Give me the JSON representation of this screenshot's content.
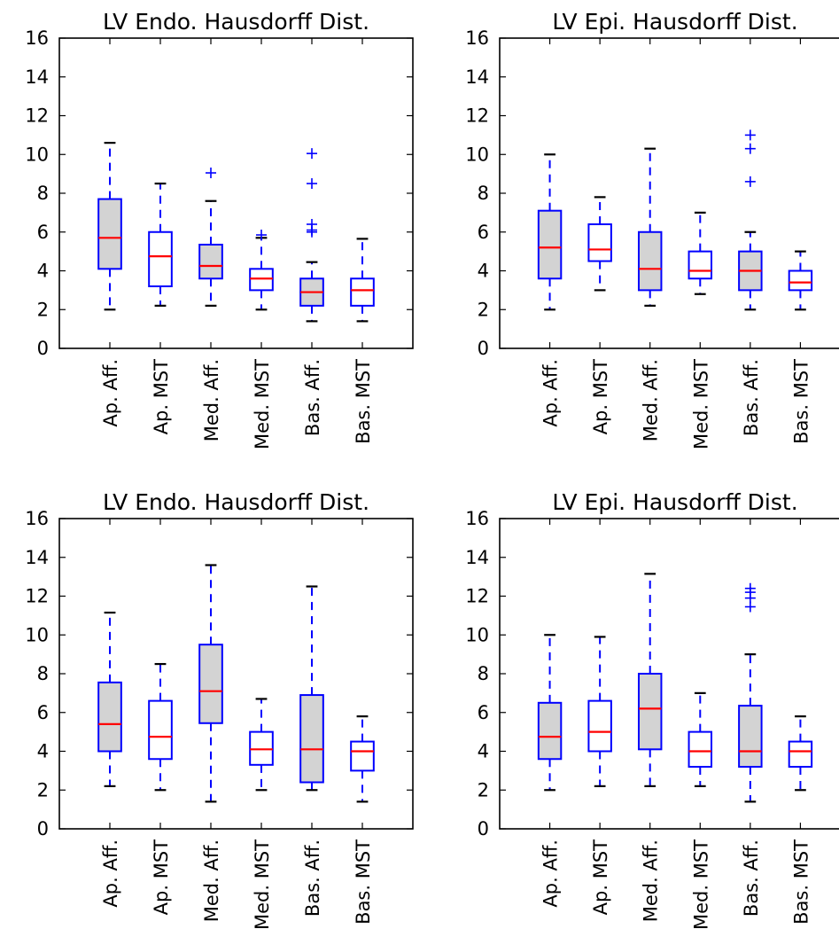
{
  "chart_data": [
    {
      "type": "box",
      "title": "LV Endo. Hausdorff Dist.",
      "categories": [
        "Ap. Aff.",
        "Ap. MST",
        "Med. Aff.",
        "Med. MST",
        "Bas. Aff.",
        "Bas. MST"
      ],
      "ylim": [
        0,
        16
      ],
      "yticks": [
        0,
        2,
        4,
        6,
        8,
        10,
        12,
        14,
        16
      ],
      "grid": false,
      "boxes": [
        {
          "whislo": 2.0,
          "q1": 4.1,
          "med": 5.7,
          "q3": 7.7,
          "whishi": 10.6,
          "fliers": [],
          "fill": "#d3d3d3"
        },
        {
          "whislo": 2.2,
          "q1": 3.2,
          "med": 4.75,
          "q3": 6.0,
          "whishi": 8.5,
          "fliers": [],
          "fill": "#ffffff"
        },
        {
          "whislo": 2.2,
          "q1": 3.6,
          "med": 4.25,
          "q3": 5.35,
          "whishi": 7.6,
          "fliers": [
            9.05
          ],
          "fill": "#d3d3d3"
        },
        {
          "whislo": 2.0,
          "q1": 3.0,
          "med": 3.6,
          "q3": 4.1,
          "whishi": 5.7,
          "fliers": [
            5.85
          ],
          "fill": "#ffffff"
        },
        {
          "whislo": 1.4,
          "q1": 2.2,
          "med": 2.9,
          "q3": 3.6,
          "whishi": 4.45,
          "fliers": [
            6.0,
            6.1,
            6.4,
            8.5,
            10.05
          ],
          "fill": "#d3d3d3"
        },
        {
          "whislo": 1.4,
          "q1": 2.2,
          "med": 3.0,
          "q3": 3.6,
          "whishi": 5.65,
          "fliers": [],
          "fill": "#ffffff"
        }
      ]
    },
    {
      "type": "box",
      "title": "LV Epi. Hausdorff Dist.",
      "categories": [
        "Ap. Aff.",
        "Ap. MST",
        "Med. Aff.",
        "Med. MST",
        "Bas. Aff.",
        "Bas. MST"
      ],
      "ylim": [
        0,
        16
      ],
      "yticks": [
        0,
        2,
        4,
        6,
        8,
        10,
        12,
        14,
        16
      ],
      "grid": false,
      "boxes": [
        {
          "whislo": 2.0,
          "q1": 3.6,
          "med": 5.2,
          "q3": 7.1,
          "whishi": 10.0,
          "fliers": [],
          "fill": "#d3d3d3"
        },
        {
          "whislo": 3.0,
          "q1": 4.5,
          "med": 5.1,
          "q3": 6.4,
          "whishi": 7.8,
          "fliers": [],
          "fill": "#ffffff"
        },
        {
          "whislo": 2.2,
          "q1": 3.0,
          "med": 4.1,
          "q3": 6.0,
          "whishi": 10.3,
          "fliers": [],
          "fill": "#d3d3d3"
        },
        {
          "whislo": 2.8,
          "q1": 3.6,
          "med": 4.0,
          "q3": 5.0,
          "whishi": 7.0,
          "fliers": [],
          "fill": "#ffffff"
        },
        {
          "whislo": 2.0,
          "q1": 3.0,
          "med": 4.0,
          "q3": 5.0,
          "whishi": 6.0,
          "fliers": [
            8.6,
            10.3,
            11.0
          ],
          "fill": "#d3d3d3"
        },
        {
          "whislo": 2.0,
          "q1": 3.0,
          "med": 3.4,
          "q3": 4.0,
          "whishi": 5.0,
          "fliers": [],
          "fill": "#ffffff"
        }
      ]
    },
    {
      "type": "box",
      "title": "LV Endo. Hausdorff Dist.",
      "categories": [
        "Ap. Aff.",
        "Ap. MST",
        "Med. Aff.",
        "Med. MST",
        "Bas. Aff.",
        "Bas. MST"
      ],
      "ylim": [
        0,
        16
      ],
      "yticks": [
        0,
        2,
        4,
        6,
        8,
        10,
        12,
        14,
        16
      ],
      "grid": false,
      "boxes": [
        {
          "whislo": 2.2,
          "q1": 4.0,
          "med": 5.4,
          "q3": 7.55,
          "whishi": 11.15,
          "fliers": [],
          "fill": "#d3d3d3"
        },
        {
          "whislo": 2.0,
          "q1": 3.6,
          "med": 4.75,
          "q3": 6.6,
          "whishi": 8.5,
          "fliers": [],
          "fill": "#ffffff"
        },
        {
          "whislo": 1.4,
          "q1": 5.45,
          "med": 7.1,
          "q3": 9.5,
          "whishi": 13.6,
          "fliers": [],
          "fill": "#d3d3d3"
        },
        {
          "whislo": 2.0,
          "q1": 3.3,
          "med": 4.1,
          "q3": 5.0,
          "whishi": 6.7,
          "fliers": [],
          "fill": "#ffffff"
        },
        {
          "whislo": 2.0,
          "q1": 2.4,
          "med": 4.1,
          "q3": 6.9,
          "whishi": 12.5,
          "fliers": [],
          "fill": "#d3d3d3"
        },
        {
          "whislo": 1.4,
          "q1": 3.0,
          "med": 4.0,
          "q3": 4.5,
          "whishi": 5.8,
          "fliers": [],
          "fill": "#ffffff"
        }
      ]
    },
    {
      "type": "box",
      "title": "LV Epi. Hausdorff Dist.",
      "categories": [
        "Ap. Aff.",
        "Ap. MST",
        "Med. Aff.",
        "Med. MST",
        "Bas. Aff.",
        "Bas. MST"
      ],
      "ylim": [
        0,
        16
      ],
      "yticks": [
        0,
        2,
        4,
        6,
        8,
        10,
        12,
        14,
        16
      ],
      "grid": false,
      "boxes": [
        {
          "whislo": 2.0,
          "q1": 3.6,
          "med": 4.75,
          "q3": 6.5,
          "whishi": 10.0,
          "fliers": [],
          "fill": "#d3d3d3"
        },
        {
          "whislo": 2.2,
          "q1": 4.0,
          "med": 5.0,
          "q3": 6.6,
          "whishi": 9.9,
          "fliers": [],
          "fill": "#ffffff"
        },
        {
          "whislo": 2.2,
          "q1": 4.1,
          "med": 6.2,
          "q3": 8.0,
          "whishi": 13.15,
          "fliers": [],
          "fill": "#d3d3d3"
        },
        {
          "whislo": 2.2,
          "q1": 3.2,
          "med": 4.0,
          "q3": 5.0,
          "whishi": 7.0,
          "fliers": [],
          "fill": "#ffffff"
        },
        {
          "whislo": 1.4,
          "q1": 3.2,
          "med": 4.0,
          "q3": 6.35,
          "whishi": 9.0,
          "fliers": [
            11.45,
            11.9,
            12.2,
            12.4
          ],
          "fill": "#d3d3d3"
        },
        {
          "whislo": 2.0,
          "q1": 3.2,
          "med": 4.0,
          "q3": 4.5,
          "whishi": 5.8,
          "fliers": [],
          "fill": "#ffffff"
        }
      ]
    }
  ],
  "colors": {
    "box_edge": "#0000ff",
    "median": "#ff0000",
    "whisker": "#0000ff",
    "cap": "#000000",
    "flier": "#0000ff",
    "axes": "#000000"
  }
}
